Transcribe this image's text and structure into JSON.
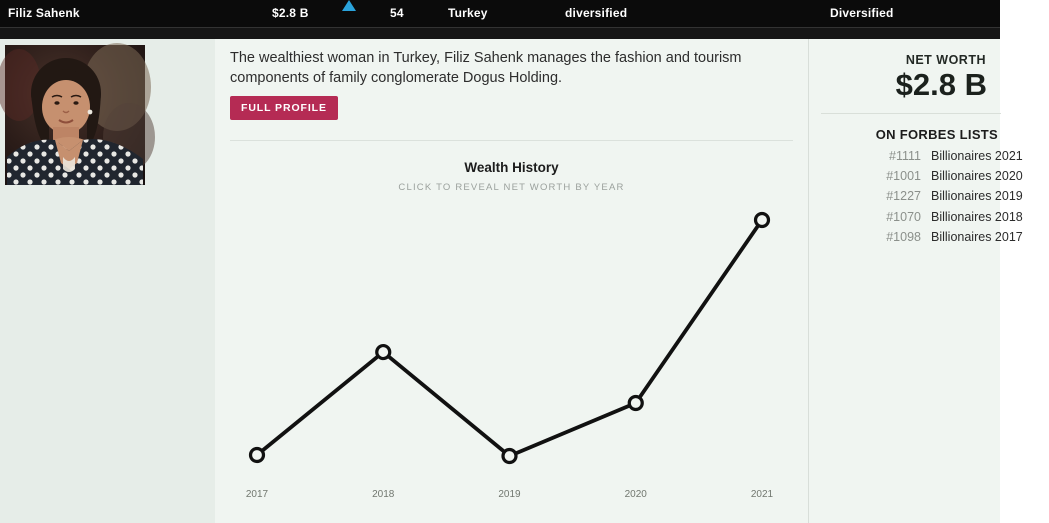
{
  "topbar": {
    "name": "Filiz Sahenk",
    "net_worth": "$2.8 B",
    "change_direction": "up",
    "change_icon_color": "#2aa3dc",
    "age": "54",
    "country": "Turkey",
    "source": "diversified",
    "industry": "Diversified"
  },
  "profile": {
    "bio": "The wealthiest woman in Turkey, Filiz Sahenk manages the fashion and tourism components of family conglomerate Dogus Holding.",
    "full_profile_label": "FULL PROFILE",
    "button_color": "#b52b54"
  },
  "wealth_history": {
    "title": "Wealth History",
    "subtitle": "CLICK TO REVEAL NET WORTH BY YEAR"
  },
  "chart_data": {
    "type": "line",
    "title": "Wealth History",
    "categories": [
      "2017",
      "2018",
      "2019",
      "2020",
      "2021"
    ],
    "values_relative": [
      0.043,
      0.445,
      0.039,
      0.246,
      0.961
    ],
    "values_note": "numeric net worth per year is hidden until clicked; values_relative are point heights as fraction of plot height, latest (2021) corresponds to $2.8 B",
    "latest_value": "$2.8 B",
    "line_color": "#111111",
    "marker": "open-circle",
    "marker_fill": "#f1f5f1",
    "grid": false,
    "y_axis_visible": false,
    "x_label_color": "#71776f"
  },
  "sidebar": {
    "net_worth_label": "NET WORTH",
    "net_worth_value": "$2.8 B",
    "lists_heading": "ON FORBES LISTS",
    "lists": [
      {
        "rank": "#1111",
        "list": "Billionaires 2021"
      },
      {
        "rank": "#1001",
        "list": "Billionaires 2020"
      },
      {
        "rank": "#1227",
        "list": "Billionaires 2019"
      },
      {
        "rank": "#1070",
        "list": "Billionaires 2018"
      },
      {
        "rank": "#1098",
        "list": "Billionaires 2017"
      }
    ]
  }
}
